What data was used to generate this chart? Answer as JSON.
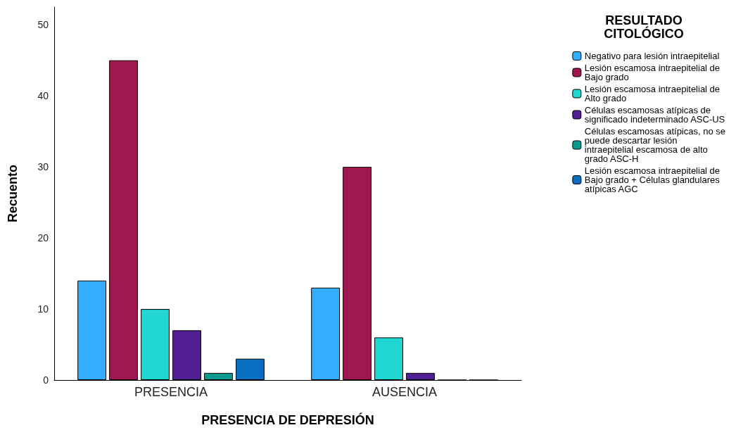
{
  "chart_data": {
    "type": "bar",
    "xlabel": "PRESENCIA DE DEPRESIÓN",
    "ylabel": "Recuento",
    "legend_title": "RESULTADO CITOLÓGICO",
    "categories": [
      "PRESENCIA",
      "AUSENCIA"
    ],
    "series": [
      {
        "name": "Negativo para lesión intraepitelial",
        "color": "#33adff",
        "values": [
          14,
          13
        ]
      },
      {
        "name": "Lesión escamosa intraepitelial de Bajo grado",
        "color": "#a0174e",
        "values": [
          45,
          30
        ]
      },
      {
        "name": "Lesión escamosa intraepitelial de Alto grado",
        "color": "#1fd6d3",
        "values": [
          10,
          6
        ]
      },
      {
        "name": "Células escamosas atípicas de significado indeterminado ASC-US",
        "color": "#521e94",
        "values": [
          7,
          1
        ]
      },
      {
        "name": "Células escamosas atípicas, no se puede descartar lesión intraepitelial escamosa de alto grado ASC-H",
        "color": "#0a9b8f",
        "values": [
          1,
          0
        ]
      },
      {
        "name": "Lesión escamosa intraepitelial de Bajo grado + Células glandulares atípicas AGC",
        "color": "#0a6fc2",
        "values": [
          3,
          0
        ]
      }
    ],
    "ylim": [
      0,
      52.5
    ],
    "yticks": [
      0,
      10,
      20,
      30,
      40,
      50
    ],
    "grid": false,
    "legend": "right"
  }
}
